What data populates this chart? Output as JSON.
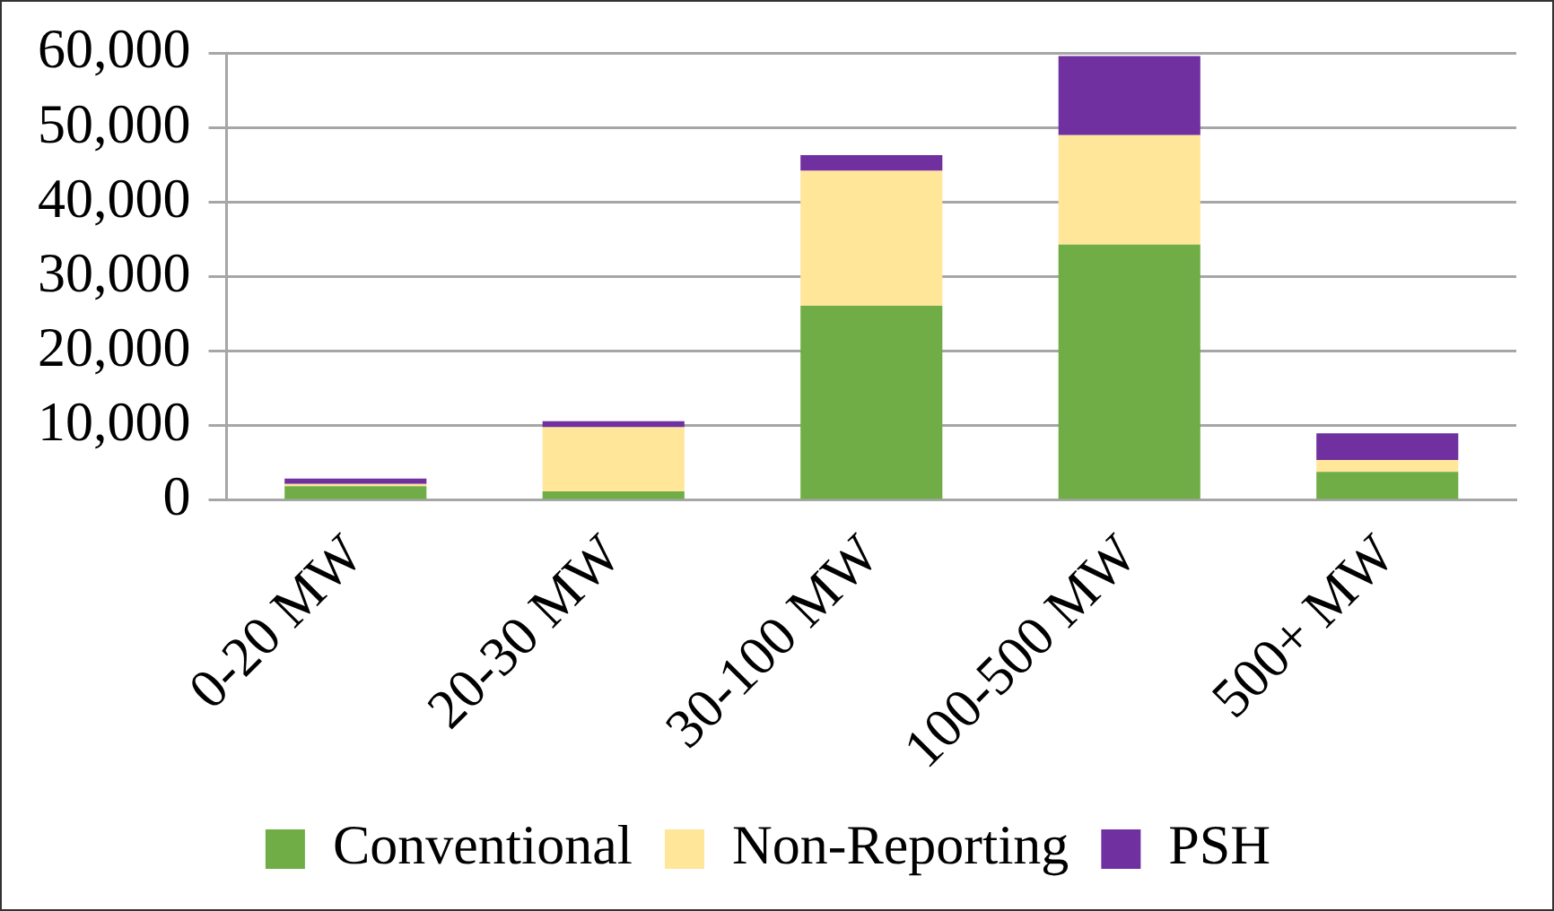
{
  "chart_data": {
    "type": "bar",
    "stacked": true,
    "categories": [
      "0-20 MW",
      "20-30 MW",
      "30-100 MW",
      "100-500 MW",
      "500+ MW"
    ],
    "series": [
      {
        "name": "Conventional",
        "color": "#70ad47",
        "values": [
          1900,
          1200,
          26100,
          34300,
          3800
        ]
      },
      {
        "name": "Non-Reporting",
        "color": "#ffe699",
        "values": [
          300,
          8600,
          18100,
          14700,
          1600
        ]
      },
      {
        "name": "PSH",
        "color": "#7030a0",
        "values": [
          700,
          800,
          2100,
          10600,
          3600
        ]
      }
    ],
    "ylim": [
      0,
      60000
    ],
    "yticks": [
      {
        "value": 0,
        "label": "0"
      },
      {
        "value": 10000,
        "label": "10,000"
      },
      {
        "value": 20000,
        "label": "20,000"
      },
      {
        "value": 30000,
        "label": "30,000"
      },
      {
        "value": 40000,
        "label": "40,000"
      },
      {
        "value": 50000,
        "label": "50,000"
      },
      {
        "value": 60000,
        "label": "60,000"
      }
    ],
    "grid": "y",
    "legend": "bottom"
  }
}
